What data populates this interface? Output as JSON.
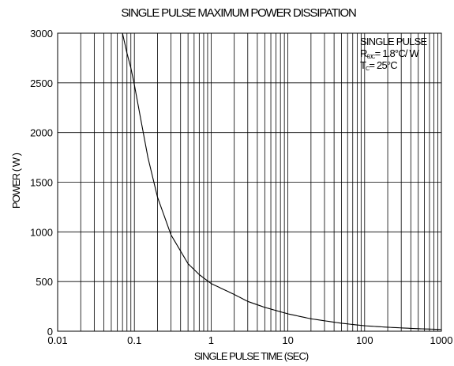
{
  "chart_data": {
    "type": "line",
    "title": "SINGLE PULSE MAXIMUM POWER DISSIPATION",
    "xlabel": "SINGLE PULSE TIME (SEC)",
    "ylabel": "POWER ( W )",
    "x_scale": "log",
    "xlim": [
      0.01,
      1000
    ],
    "ylim": [
      0,
      3000
    ],
    "x_ticks": [
      0.01,
      0.1,
      1,
      10,
      100,
      1000
    ],
    "x_tick_labels": [
      "0.01",
      "0.1",
      "1",
      "10",
      "100",
      "1000"
    ],
    "y_ticks": [
      0,
      500,
      1000,
      1500,
      2000,
      2500,
      3000
    ],
    "y_tick_labels": [
      "0",
      "500",
      "1000",
      "1500",
      "2000",
      "2500",
      "3000"
    ],
    "grid": true,
    "annotation": {
      "line1": "SINGLE PULSE",
      "line2_symbol": "R",
      "line2_sub": "θJC",
      "line2_value": "= 1.8°C/ W",
      "line3_symbol": "T",
      "line3_sub": "C",
      "line3_value": "= 25°C"
    },
    "series": [
      {
        "x": [
          0.07,
          0.08,
          0.09,
          0.1,
          0.12,
          0.15,
          0.2,
          0.3,
          0.5,
          0.7,
          1,
          2,
          3,
          5,
          10,
          20,
          50,
          100,
          200,
          500,
          1000
        ],
        "y": [
          3000,
          2800,
          2650,
          2480,
          2150,
          1750,
          1350,
          970,
          680,
          570,
          480,
          370,
          300,
          240,
          175,
          125,
          80,
          55,
          40,
          25,
          18
        ]
      }
    ]
  }
}
